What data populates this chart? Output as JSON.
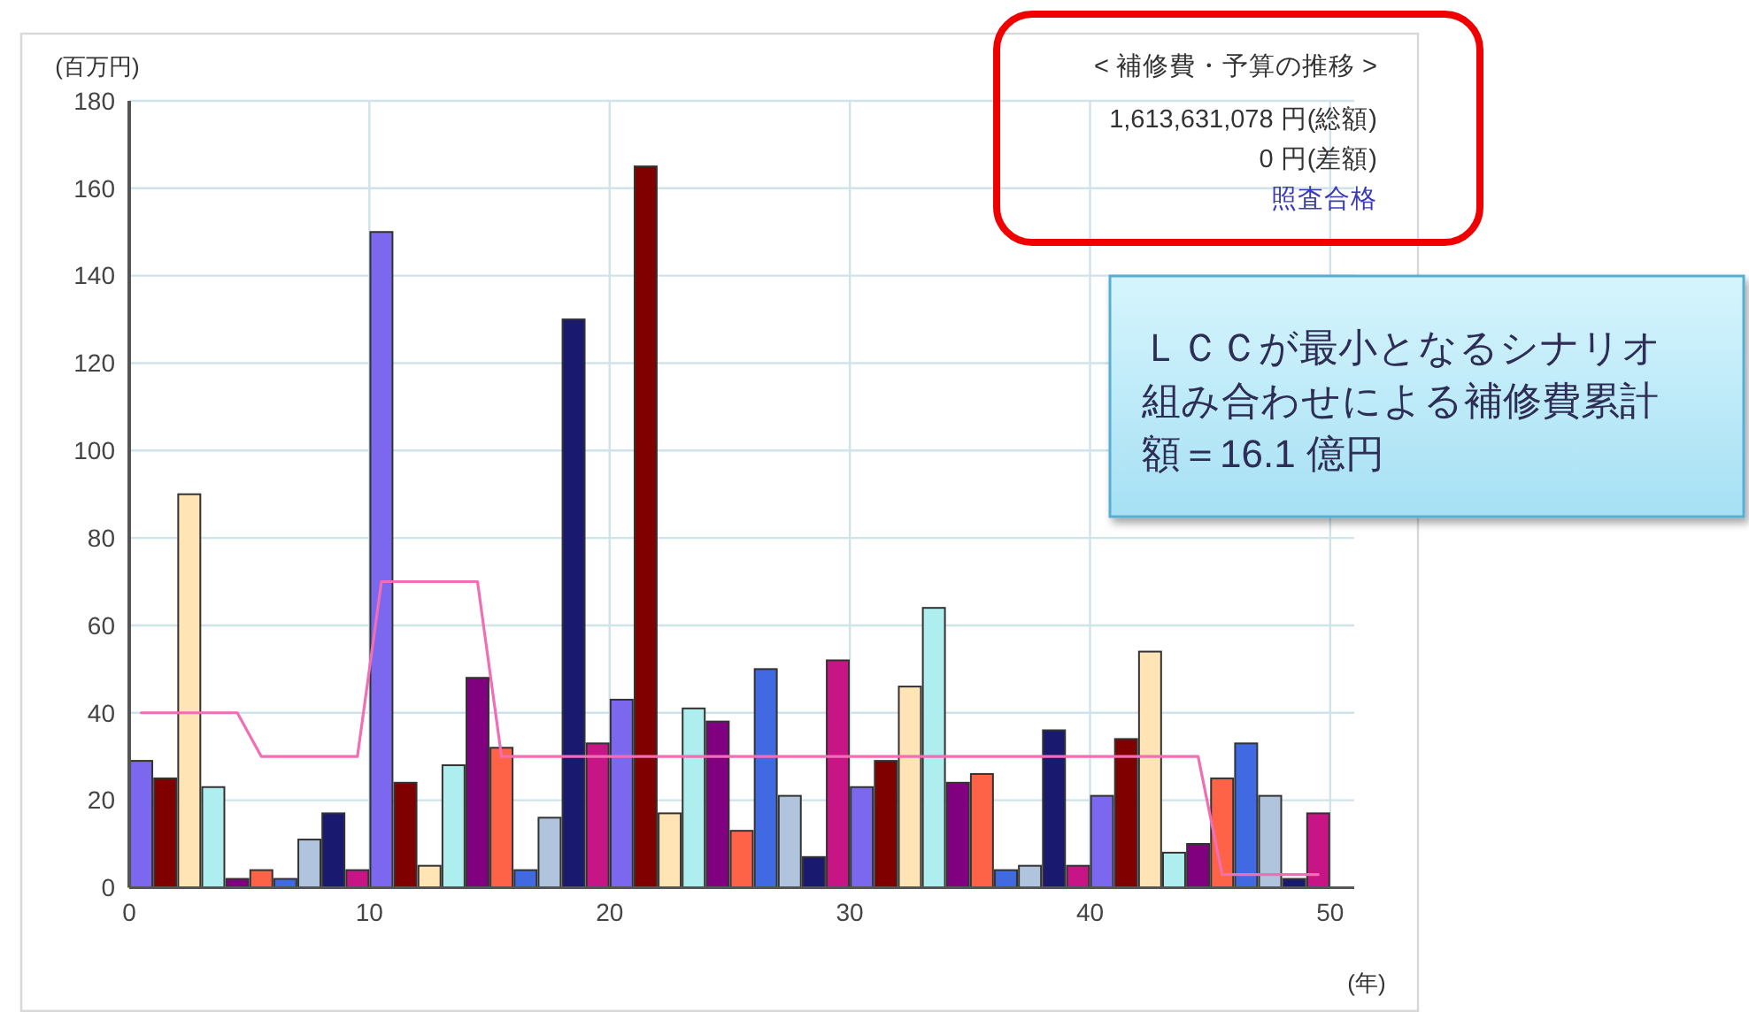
{
  "chart_data": {
    "type": "bar",
    "title": "< 補修費・予算の推移 >",
    "xlabel": "(年)",
    "ylabel": "(百万円)",
    "x": [
      0.5,
      1.5,
      2.5,
      3.5,
      4.5,
      5.5,
      6.5,
      7.5,
      8.5,
      9.5,
      10.5,
      11.5,
      12.5,
      13.5,
      14.5,
      15.5,
      16.5,
      17.5,
      18.5,
      19.5,
      20.5,
      21.5,
      22.5,
      23.5,
      24.5,
      25.5,
      26.5,
      27.5,
      28.5,
      29.5,
      30.5,
      31.5,
      32.5,
      33.5,
      34.5,
      35.5,
      36.5,
      37.5,
      38.5,
      39.5,
      40.5,
      41.5,
      42.5,
      43.5,
      44.5,
      45.5,
      46.5,
      47.5,
      48.5,
      49.5
    ],
    "xlim": [
      0,
      51
    ],
    "xticks": [
      0,
      10,
      20,
      30,
      40,
      50
    ],
    "ylim": [
      0,
      180
    ],
    "yticks": [
      0,
      20,
      40,
      60,
      80,
      100,
      120,
      140,
      160,
      180
    ],
    "grid": true,
    "series": [
      {
        "values": [
          29,
          25,
          90,
          23,
          2,
          4,
          2,
          11,
          17,
          4,
          150,
          24,
          5,
          28,
          48,
          32,
          4,
          16,
          130,
          33,
          43,
          165,
          17,
          41,
          38,
          13,
          50,
          21,
          7,
          52,
          23,
          29,
          46,
          64,
          24,
          26,
          4,
          5,
          36,
          5,
          21,
          34,
          54,
          8,
          10,
          25,
          33,
          21,
          2,
          17
        ],
        "colors": [
          "#7b68ee",
          "#800000",
          "#ffe4b5",
          "#afeeee",
          "#800080",
          "#ff6347",
          "#4169e1",
          "#b0c4de",
          "#191970",
          "#c71585",
          "#7b68ee",
          "#800000",
          "#ffe4b5",
          "#afeeee",
          "#800080",
          "#ff6347",
          "#4169e1",
          "#b0c4de",
          "#191970",
          "#c71585",
          "#7b68ee",
          "#800000",
          "#ffe4b5",
          "#afeeee",
          "#800080",
          "#ff6347",
          "#4169e1",
          "#b0c4de",
          "#191970",
          "#c71585",
          "#7b68ee",
          "#800000",
          "#ffe4b5",
          "#afeeee",
          "#800080",
          "#ff6347",
          "#4169e1",
          "#b0c4de",
          "#191970",
          "#c71585",
          "#7b68ee",
          "#800000",
          "#ffe4b5",
          "#afeeee",
          "#800080",
          "#ff6347",
          "#4169e1",
          "#b0c4de",
          "#191970",
          "#c71585"
        ]
      },
      {
        "type": "line",
        "color": "#f06eb4",
        "values": [
          40,
          40,
          40,
          40,
          40,
          30,
          30,
          30,
          30,
          30,
          70,
          70,
          70,
          70,
          70,
          30,
          30,
          30,
          30,
          30,
          30,
          30,
          30,
          30,
          30,
          30,
          30,
          30,
          30,
          30,
          30,
          30,
          30,
          30,
          30,
          30,
          30,
          30,
          30,
          30,
          30,
          30,
          30,
          30,
          30,
          3,
          3,
          3,
          3,
          3
        ]
      }
    ],
    "annotations": [
      "1,613,631,078 円(総額)",
      "0 円(差額)",
      "照査合格",
      "ＬＣＣが最小となるシナリオ組み合わせによる補修費累計額＝16.1 億円"
    ]
  }
}
